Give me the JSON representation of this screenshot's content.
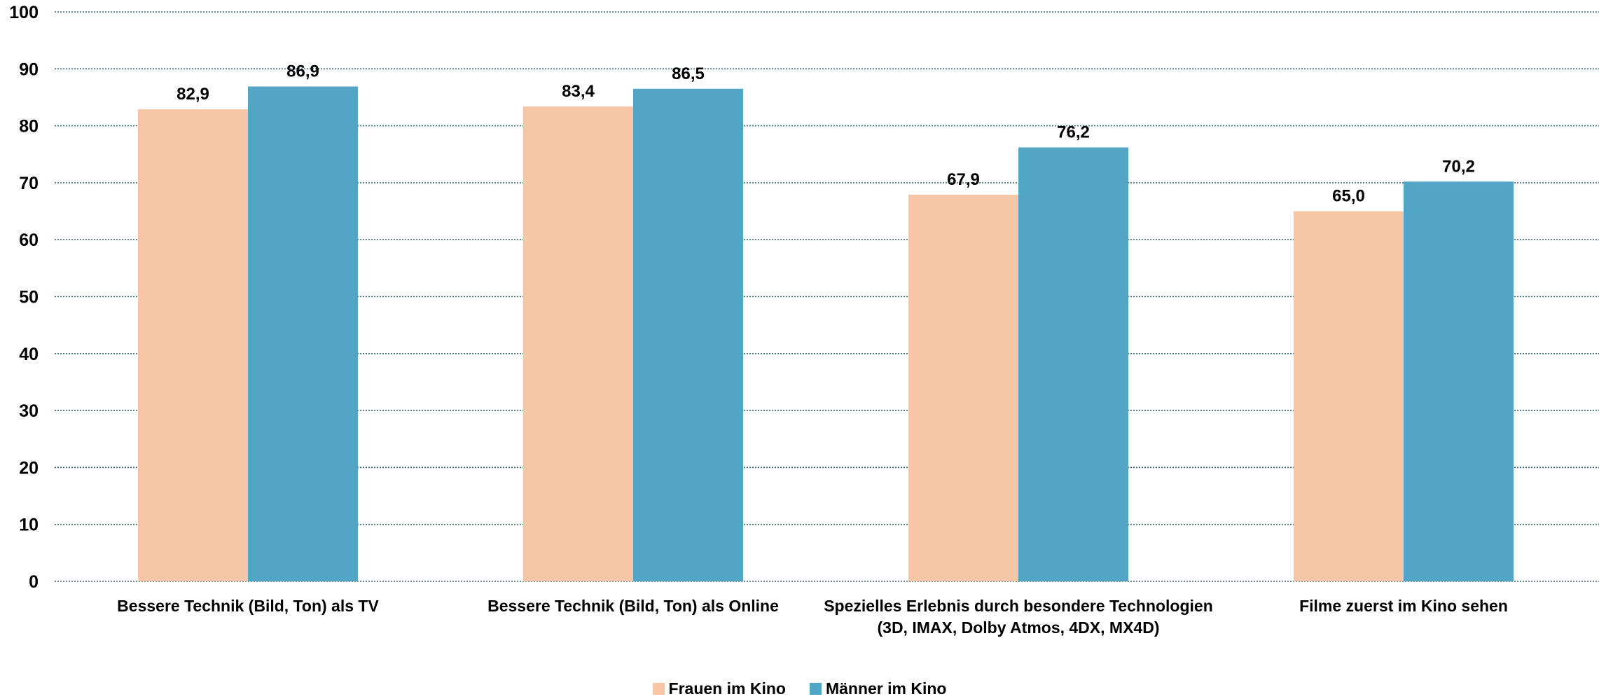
{
  "chart_data": {
    "type": "bar",
    "title": "",
    "xlabel": "",
    "ylabel": "",
    "ylim": [
      0,
      100
    ],
    "yticks": [
      0,
      10,
      20,
      30,
      40,
      50,
      60,
      70,
      80,
      90,
      100
    ],
    "grid": true,
    "legend_position": "bottom",
    "categories": [
      "Bessere Technik (Bild, Ton) als TV",
      "Bessere Technik (Bild, Ton) als Online",
      "Spezielles Erlebnis durch besondere Technologien (3D, IMAX, Dolby Atmos, 4DX, MX4D)",
      "Filme zuerst im Kino sehen"
    ],
    "series": [
      {
        "name": "Frauen im Kino",
        "color": "#f7c6a6",
        "values": [
          82.9,
          83.4,
          67.9,
          65.0
        ],
        "labels": [
          "82,9",
          "83,4",
          "67,9",
          "65,0"
        ]
      },
      {
        "name": "Männer im Kino",
        "color": "#52a5c4",
        "values": [
          86.9,
          86.5,
          76.2,
          70.2
        ],
        "labels": [
          "86,9",
          "86,5",
          "76,2",
          "70,2"
        ]
      }
    ]
  }
}
